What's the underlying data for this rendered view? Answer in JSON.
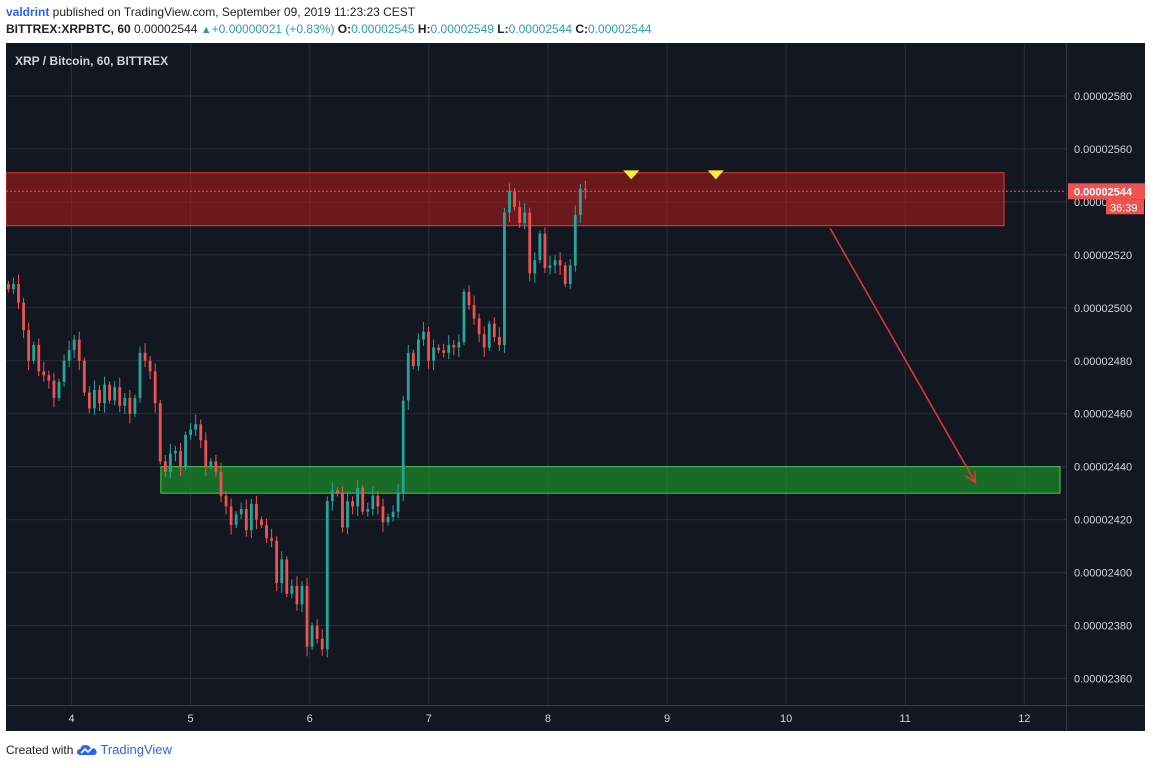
{
  "header": {
    "author": "valdrint",
    "published_text": " published on TradingView.com, September 09, 2019 11:23:23 CEST"
  },
  "ohlc": {
    "symbol_label": "BITTREX:XRPBTC, 60",
    "last": "0.00002544",
    "change": "+0.00000021 (+0.83%)",
    "o_label": "O:",
    "o": "0.00002545",
    "h_label": "H:",
    "h": "0.00002549",
    "l_label": "L:",
    "l": "0.00002544",
    "c_label": "C:",
    "c": "0.00002544"
  },
  "footer": {
    "created_with": "Created with",
    "brand": "TradingView"
  },
  "colors": {
    "background": "#131722",
    "grid": "#2a2e39",
    "up": "#26a69a",
    "down": "#ef5350",
    "resistance_zone": "#b71c1c",
    "support_zone": "#1b8a2a",
    "marker": "#ffeb3b",
    "arrow": "#e53935",
    "price_label": "#ef5350"
  },
  "chart_data": {
    "type": "candlestick",
    "title": "XRP / Bitcoin, 60, BITTREX",
    "x_axis": {
      "range": [
        3.45,
        12.35
      ],
      "ticks": [
        "4",
        "5",
        "6",
        "7",
        "8",
        "9",
        "10",
        "11",
        "12"
      ],
      "tick_values": [
        4,
        5,
        6,
        7,
        8,
        9,
        10,
        11,
        12
      ]
    },
    "y_axis": {
      "range": [
        2.35e-05,
        2.6e-05
      ],
      "ticks": [
        "0.00002360",
        "0.00002380",
        "0.00002400",
        "0.00002420",
        "0.00002440",
        "0.00002460",
        "0.00002480",
        "0.00002500",
        "0.00002520",
        "0.00002540",
        "0.00002560",
        "0.00002580"
      ],
      "tick_values": [
        2.36e-05,
        2.38e-05,
        2.4e-05,
        2.42e-05,
        2.44e-05,
        2.46e-05,
        2.48e-05,
        2.5e-05,
        2.52e-05,
        2.54e-05,
        2.56e-05,
        2.58e-05
      ]
    },
    "grid": true,
    "last_price_label": "0.00002544",
    "countdown_label": "36:39",
    "last_price": 2.544e-05,
    "candle_x_start": 3.47,
    "candle_x_step": 0.0425,
    "candles_close": [
      2.507,
      2.509,
      2.502,
      2.4915,
      2.48,
      2.486,
      2.476,
      2.4745,
      2.4725,
      2.466,
      2.472,
      2.48,
      2.484,
      2.488,
      2.48,
      2.468,
      2.462,
      2.469,
      2.464,
      2.471,
      2.465,
      2.47,
      2.463,
      2.466,
      2.46,
      2.466,
      2.483,
      2.48,
      2.476,
      2.464,
      2.442,
      2.438,
      2.445,
      2.446,
      2.44,
      2.452,
      2.454,
      2.456,
      2.45,
      2.44,
      2.442,
      2.438,
      2.429,
      2.425,
      2.418,
      2.422,
      2.424,
      2.416,
      2.426,
      2.42,
      2.418,
      2.413,
      2.412,
      2.396,
      2.405,
      2.392,
      2.395,
      2.388,
      2.395,
      2.372,
      2.38,
      2.375,
      2.371,
      2.427,
      2.431,
      2.43,
      2.417,
      2.427,
      2.425,
      2.432,
      2.423,
      2.424,
      2.429,
      2.425,
      2.419,
      2.421,
      2.423,
      2.43,
      2.465,
      2.483,
      2.478,
      2.488,
      2.491,
      2.48,
      2.485,
      2.484,
      2.483,
      2.486,
      2.485,
      2.487,
      2.506,
      2.501,
      2.496,
      2.49,
      2.485,
      2.494,
      2.489,
      2.486,
      2.536,
      2.544,
      2.538,
      2.532,
      2.536,
      2.513,
      2.518,
      2.528,
      2.515,
      2.516,
      2.518,
      2.516,
      2.509,
      2.516,
      2.535,
      2.545,
      2.5445
    ],
    "zones": [
      {
        "name": "resistance",
        "low": 2.531e-05,
        "high": 2.551e-05,
        "x_from": 3.45,
        "x_to": 11.83
      },
      {
        "name": "support",
        "low": 2.43e-05,
        "high": 2.44e-05,
        "x_from": 4.75,
        "x_to": 12.3
      }
    ],
    "markers": [
      {
        "x": 8.7,
        "y": 2.55e-05
      },
      {
        "x": 9.41,
        "y": 2.55e-05
      }
    ],
    "arrow": {
      "from_x": 10.37,
      "from_y": 2.53e-05,
      "to_x": 11.59,
      "to_y": 2.434e-05
    },
    "price_scale_unit": "1e-8"
  }
}
